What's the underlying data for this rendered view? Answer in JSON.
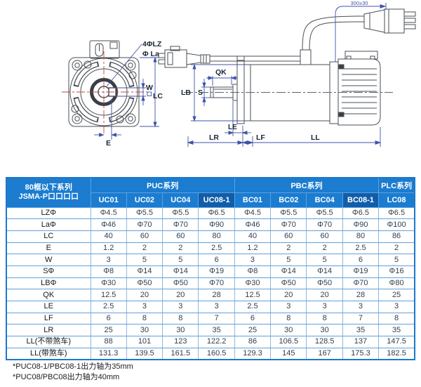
{
  "diagram": {
    "front_view_labels": {
      "holes": "4ΦLZ",
      "pilot": "Φ La",
      "key_width": "W",
      "frame": "LC",
      "key_offset": "E"
    },
    "side_view_labels": {
      "key_length": "QK",
      "pilot_dia": "LB",
      "shaft_dia": "S",
      "step": "LE",
      "shaft_len": "LR",
      "flange_thk": "LF",
      "body_len": "LL",
      "cable_len": "300±30"
    }
  },
  "table": {
    "corner_header": {
      "line1": "80框以下系列",
      "line2": "JSMA-P口口口口"
    },
    "groups": [
      {
        "label": "PUC系列",
        "span": 4
      },
      {
        "label": "PBC系列",
        "span": 4
      },
      {
        "label": "PLC系列",
        "span": 1
      }
    ],
    "columns": [
      "UC01",
      "UC02",
      "UC04",
      "UC08-1",
      "BC01",
      "BC02",
      "BC04",
      "BC08-1",
      "LC08"
    ],
    "highlight_columns": [
      3,
      7
    ],
    "rows": [
      {
        "label": "LZΦ",
        "values": [
          "Φ4.5",
          "Φ5.5",
          "Φ5.5",
          "Φ6.5",
          "Φ4.5",
          "Φ5.5",
          "Φ5.5",
          "Φ6.5",
          "Φ6.5"
        ]
      },
      {
        "label": "LaΦ",
        "values": [
          "Φ46",
          "Φ70",
          "Φ70",
          "Φ90",
          "Φ46",
          "Φ70",
          "Φ70",
          "Φ90",
          "Φ100"
        ]
      },
      {
        "label": "LC",
        "values": [
          "40",
          "60",
          "60",
          "80",
          "40",
          "60",
          "60",
          "80",
          "86"
        ]
      },
      {
        "label": "E",
        "values": [
          "1.2",
          "2",
          "2",
          "2.5",
          "1.2",
          "2",
          "2",
          "2.5",
          "2"
        ]
      },
      {
        "label": "W",
        "values": [
          "3",
          "5",
          "5",
          "6",
          "3",
          "5",
          "5",
          "6",
          "5"
        ]
      },
      {
        "label": "SΦ",
        "values": [
          "Φ8",
          "Φ14",
          "Φ14",
          "Φ19",
          "Φ8",
          "Φ14",
          "Φ14",
          "Φ19",
          "Φ16"
        ]
      },
      {
        "label": "LBΦ",
        "values": [
          "Φ30",
          "Φ50",
          "Φ50",
          "Φ70",
          "Φ30",
          "Φ50",
          "Φ50",
          "Φ70",
          "Φ80"
        ]
      },
      {
        "label": "QK",
        "values": [
          "12.5",
          "20",
          "20",
          "28",
          "12.5",
          "20",
          "20",
          "28",
          "25"
        ]
      },
      {
        "label": "LE",
        "values": [
          "2.5",
          "3",
          "3",
          "3",
          "2.5",
          "3",
          "3",
          "3",
          "3"
        ]
      },
      {
        "label": "LF",
        "values": [
          "6",
          "8",
          "8",
          "7",
          "6",
          "8",
          "8",
          "7",
          "8"
        ]
      },
      {
        "label": "LR",
        "values": [
          "25",
          "30",
          "30",
          "35",
          "25",
          "30",
          "30",
          "35",
          "35"
        ]
      },
      {
        "label": "LL(不带煞车)",
        "values": [
          "88",
          "101",
          "123",
          "122.2",
          "86",
          "106.5",
          "128.5",
          "137",
          "147.5"
        ]
      },
      {
        "label": "LL(带煞车)",
        "values": [
          "131.3",
          "139.5",
          "161.5",
          "160.5",
          "129.3",
          "145",
          "167",
          "175.3",
          "182.5"
        ]
      }
    ]
  },
  "footnotes": [
    "*PUC08-1/PBC08-1出力轴为35mm",
    "*PUC08/PBC08出力轴为40mm"
  ],
  "colors": {
    "header_blue": "#1b7cd0",
    "header_highlight": "#115da9",
    "table_border": "#1e78cb",
    "dimension_blue": "#4053a8",
    "centerline_red": "#c24a41",
    "outline_gray": "#4a4f55"
  }
}
